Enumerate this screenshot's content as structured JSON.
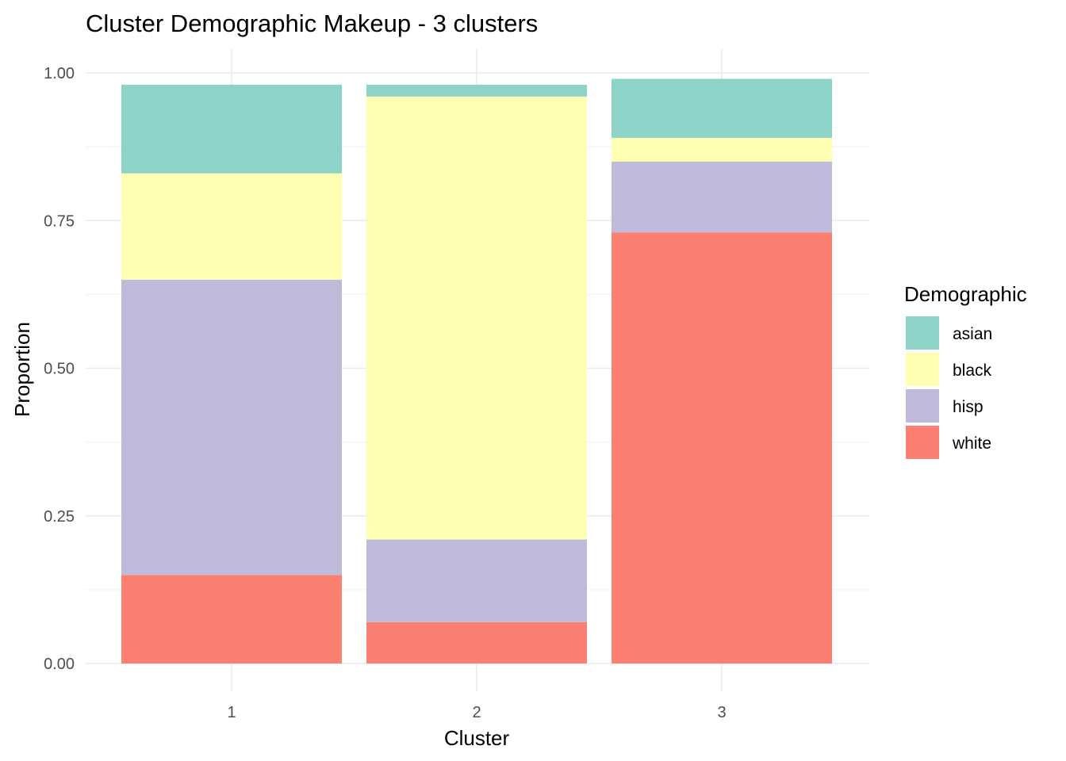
{
  "chart_data": {
    "type": "bar",
    "stacked": true,
    "title": "Cluster Demographic Makeup - 3 clusters",
    "xlabel": "Cluster",
    "ylabel": "Proportion",
    "categories": [
      "1",
      "2",
      "3"
    ],
    "ylim": [
      0,
      1
    ],
    "yticks": [
      "0.00",
      "0.25",
      "0.50",
      "0.75",
      "1.00"
    ],
    "ytick_values": [
      0,
      0.25,
      0.5,
      0.75,
      1.0
    ],
    "grid": true,
    "legend": {
      "title": "Demographic",
      "position": "right"
    },
    "series": [
      {
        "name": "white",
        "color": "#FB8072",
        "values": [
          0.15,
          0.07,
          0.73
        ]
      },
      {
        "name": "hisp",
        "color": "#BEBADA",
        "values": [
          0.5,
          0.14,
          0.12
        ]
      },
      {
        "name": "black",
        "color": "#FFFFB3",
        "values": [
          0.18,
          0.75,
          0.04
        ]
      },
      {
        "name": "asian",
        "color": "#8DD3C7",
        "values": [
          0.15,
          0.02,
          0.1
        ]
      }
    ],
    "legend_order": [
      "asian",
      "black",
      "hisp",
      "white"
    ]
  }
}
